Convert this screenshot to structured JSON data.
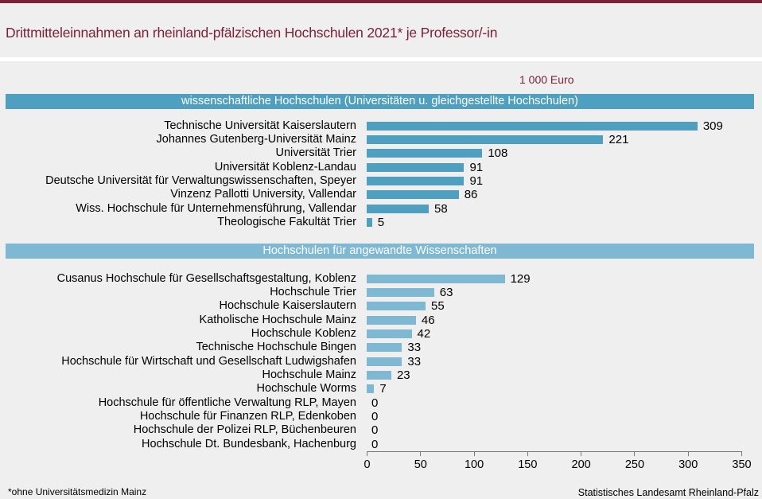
{
  "title": "Drittmitteleinnahmen an rheinland-pfälzischen Hochschulen 2021* je Professor/-in",
  "footnote": "*ohne Universitätsmedizin Mainz",
  "source": "Statistisches Landesamt Rheinland-Pfalz",
  "colors": {
    "accent": "#7d2138",
    "group1": "#4e9fc0",
    "group2": "#7fb8d3"
  },
  "chart_data": {
    "type": "bar",
    "orientation": "horizontal",
    "title": "Drittmitteleinnahmen an rheinland-pfälzischen Hochschulen 2021* je Professor/-in",
    "unit": "1 000 Euro",
    "xlim": [
      0,
      350
    ],
    "xticks": [
      0,
      50,
      100,
      150,
      200,
      250,
      300,
      350
    ],
    "groups": [
      {
        "name": "wissenschaftliche Hochschulen (Universitäten u. gleichgestellte Hochschulen)",
        "categories": [
          "Technische Universität Kaiserslautern",
          "Johannes Gutenberg-Universität Mainz",
          "Universität Trier",
          "Universität Koblenz-Landau",
          "Deutsche Universität für Verwaltungswissenschaften, Speyer",
          "Vinzenz Pallotti University, Vallendar",
          "Wiss. Hochschule für Unternehmensführung, Vallendar",
          "Theologische Fakultät Trier"
        ],
        "values": [
          309,
          221,
          108,
          91,
          91,
          86,
          58,
          5
        ]
      },
      {
        "name": "Hochschulen für angewandte Wissenschaften",
        "categories": [
          "Cusanus Hochschule für Gesellschaftsgestaltung, Koblenz",
          "Hochschule Trier",
          "Hochschule Kaiserslautern",
          "Katholische Hochschule Mainz",
          "Hochschule Koblenz",
          "Technische Hochschule Bingen",
          "Hochschule für Wirtschaft und Gesellschaft Ludwigshafen",
          "Hochschule Mainz",
          "Hochschule Worms",
          "Hochschule für öffentliche Verwaltung RLP, Mayen",
          "Hochschule für Finanzen RLP, Edenkoben",
          "Hochschule der Polizei RLP, Büchenbeuren",
          "Hochschule Dt. Bundesbank, Hachenburg"
        ],
        "values": [
          129,
          63,
          55,
          46,
          42,
          33,
          33,
          23,
          7,
          0,
          0,
          0,
          0
        ]
      }
    ]
  }
}
